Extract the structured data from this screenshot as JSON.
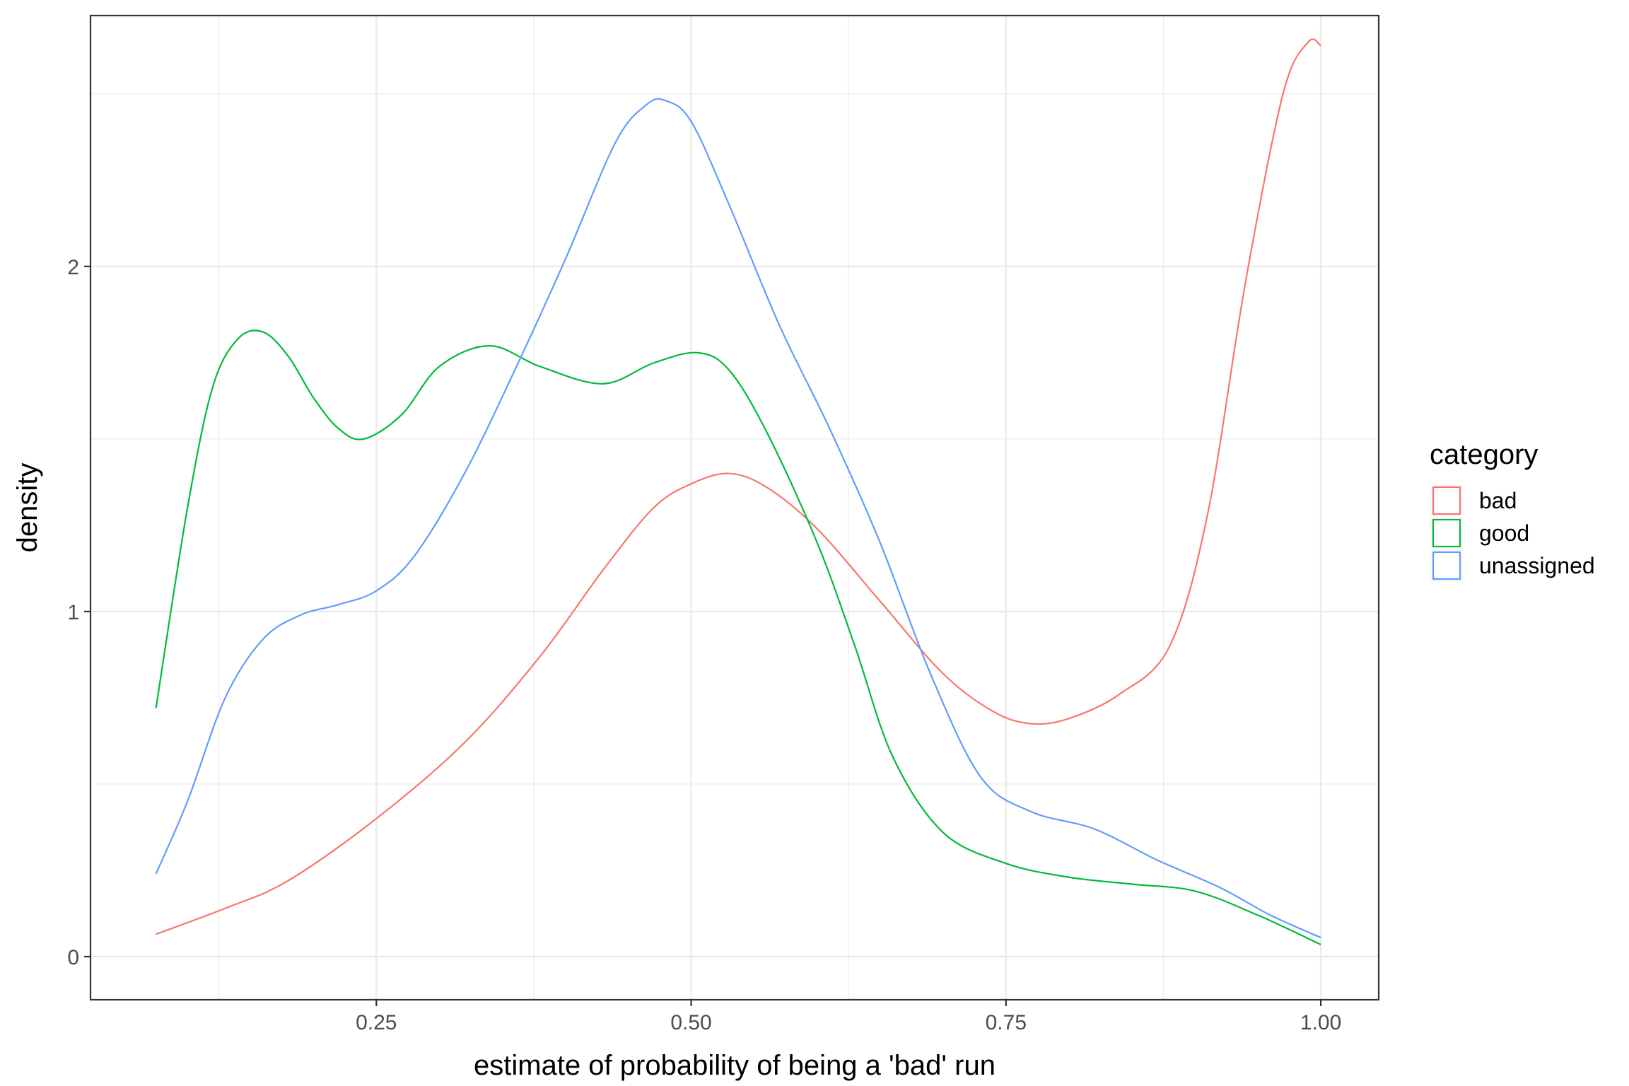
{
  "chart_data": {
    "type": "line",
    "title": "",
    "xlabel": "estimate of probability of being a 'bad' run",
    "ylabel": "density",
    "xlim": [
      0.023,
      1.046
    ],
    "ylim": [
      -0.125,
      2.727
    ],
    "x_ticks": [
      0.25,
      0.5,
      0.75,
      1.0
    ],
    "x_tick_labels": [
      "0.25",
      "0.50",
      "0.75",
      "1.00"
    ],
    "y_ticks": [
      0,
      1,
      2
    ],
    "y_tick_labels": [
      "0",
      "1",
      "2"
    ],
    "grid": true,
    "legend": {
      "title": "category",
      "placement": "right"
    },
    "series": [
      {
        "name": "bad",
        "color": "#F8766D",
        "x": [
          0.075,
          0.13,
          0.18,
          0.25,
          0.32,
          0.38,
          0.43,
          0.47,
          0.5,
          0.53,
          0.56,
          0.6,
          0.65,
          0.7,
          0.74,
          0.77,
          0.8,
          0.84,
          0.88,
          0.91,
          0.94,
          0.97,
          0.99,
          1.0
        ],
        "y": [
          0.065,
          0.14,
          0.22,
          0.4,
          0.62,
          0.87,
          1.12,
          1.3,
          1.37,
          1.4,
          1.36,
          1.24,
          1.03,
          0.82,
          0.71,
          0.675,
          0.69,
          0.76,
          0.9,
          1.28,
          1.95,
          2.5,
          2.65,
          2.64
        ]
      },
      {
        "name": "good",
        "color": "#00BA38",
        "x": [
          0.075,
          0.1,
          0.12,
          0.14,
          0.16,
          0.18,
          0.2,
          0.22,
          0.24,
          0.27,
          0.3,
          0.34,
          0.38,
          0.43,
          0.47,
          0.505,
          0.53,
          0.56,
          0.6,
          0.63,
          0.66,
          0.7,
          0.75,
          0.8,
          0.85,
          0.9,
          0.95,
          1.0
        ],
        "y": [
          0.72,
          1.3,
          1.65,
          1.79,
          1.81,
          1.74,
          1.62,
          1.53,
          1.5,
          1.57,
          1.71,
          1.77,
          1.71,
          1.66,
          1.72,
          1.75,
          1.7,
          1.52,
          1.2,
          0.9,
          0.58,
          0.36,
          0.27,
          0.23,
          0.21,
          0.19,
          0.12,
          0.035
        ]
      },
      {
        "name": "unassigned",
        "color": "#619CFF",
        "x": [
          0.075,
          0.1,
          0.13,
          0.16,
          0.19,
          0.22,
          0.25,
          0.28,
          0.32,
          0.36,
          0.4,
          0.44,
          0.465,
          0.48,
          0.5,
          0.53,
          0.57,
          0.61,
          0.65,
          0.69,
          0.73,
          0.77,
          0.82,
          0.87,
          0.92,
          0.96,
          1.0
        ],
        "y": [
          0.24,
          0.45,
          0.75,
          0.92,
          0.99,
          1.02,
          1.06,
          1.16,
          1.4,
          1.7,
          2.02,
          2.36,
          2.47,
          2.48,
          2.42,
          2.18,
          1.83,
          1.53,
          1.2,
          0.82,
          0.52,
          0.42,
          0.37,
          0.28,
          0.2,
          0.12,
          0.055
        ]
      }
    ]
  }
}
